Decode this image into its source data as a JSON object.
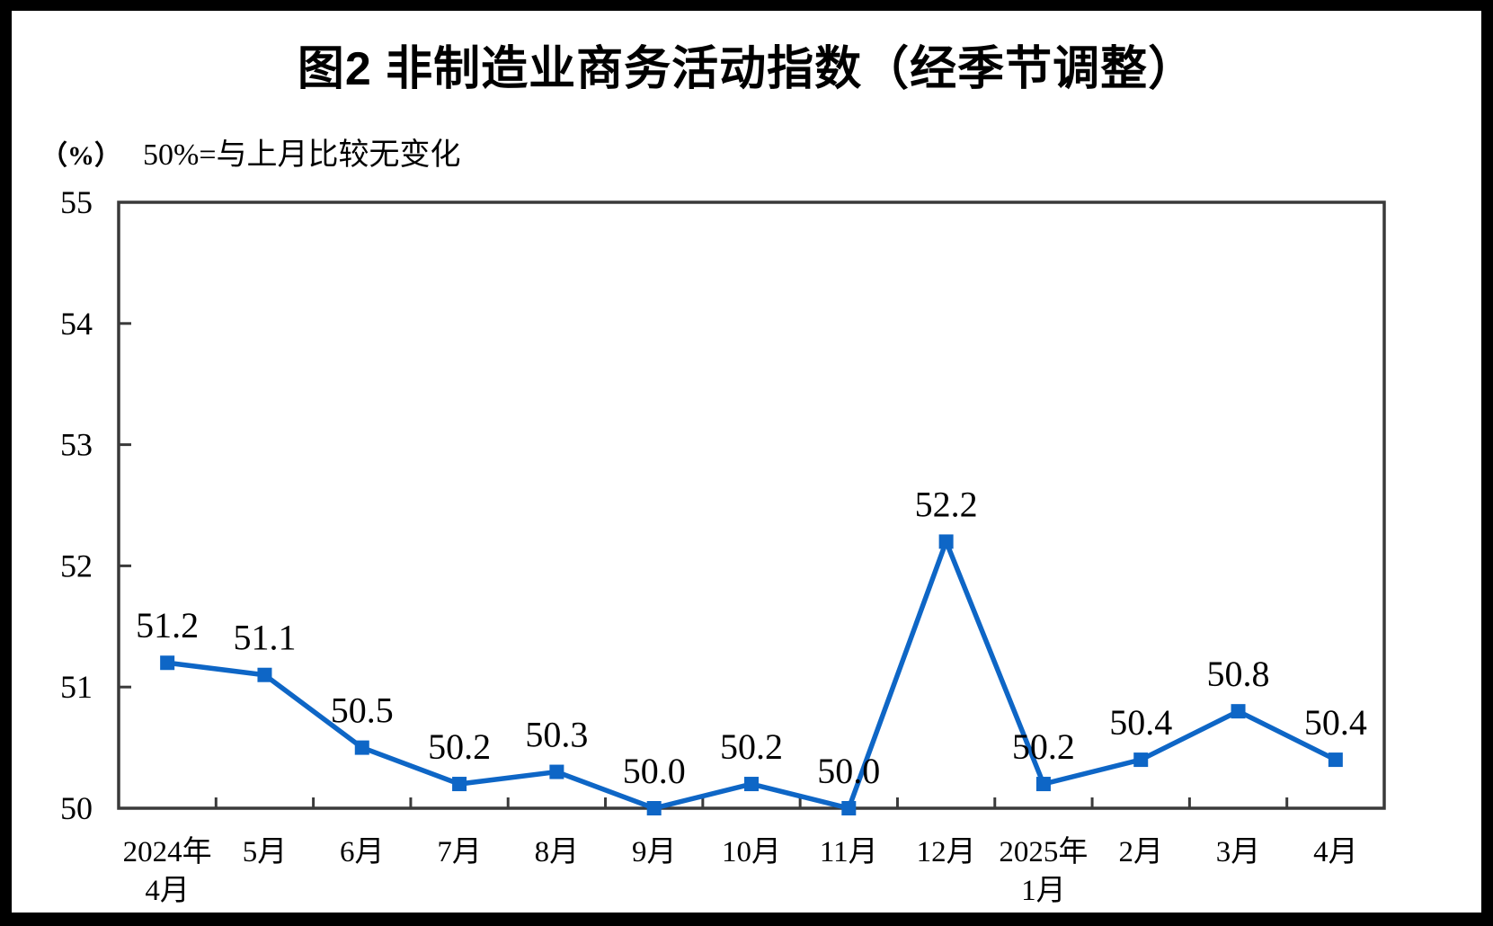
{
  "title": "图2 非制造业商务活动指数（经季节调整）",
  "axis_note": {
    "unit": "（%）",
    "text": "50%=与上月比较无变化"
  },
  "chart_data": {
    "type": "line",
    "title": "图2 非制造业商务活动指数（经季节调整）",
    "annotation": "50%=与上月比较无变化",
    "unit": "（%）",
    "ylim": [
      50,
      55
    ],
    "y_ticks": [
      "50",
      "51",
      "52",
      "53",
      "54",
      "55"
    ],
    "grid": false,
    "legend_position": "none",
    "marker": "square",
    "categories": [
      {
        "label": "2024年",
        "sublabel": "4月"
      },
      {
        "label": "5月"
      },
      {
        "label": "6月"
      },
      {
        "label": "7月"
      },
      {
        "label": "8月"
      },
      {
        "label": "9月"
      },
      {
        "label": "10月"
      },
      {
        "label": "11月"
      },
      {
        "label": "12月"
      },
      {
        "label": "2025年",
        "sublabel": "1月"
      },
      {
        "label": "2月"
      },
      {
        "label": "3月"
      },
      {
        "label": "4月"
      }
    ],
    "series": [
      {
        "name": "非制造业商务活动指数（经季节调整）",
        "values": [
          51.2,
          51.1,
          50.5,
          50.2,
          50.3,
          50.0,
          50.2,
          50.0,
          52.2,
          50.2,
          50.4,
          50.8,
          50.4
        ],
        "labels": [
          "51.2",
          "51.1",
          "50.5",
          "50.2",
          "50.3",
          "50.0",
          "50.2",
          "50.0",
          "52.2",
          "50.2",
          "50.4",
          "50.8",
          "50.4"
        ],
        "color": "#0e66c6"
      }
    ]
  },
  "colors": {
    "line": "#0e66c6",
    "plot_border": "#3a3a3a",
    "text": "#000000",
    "frame": "#000000",
    "background": "#ffffff"
  }
}
